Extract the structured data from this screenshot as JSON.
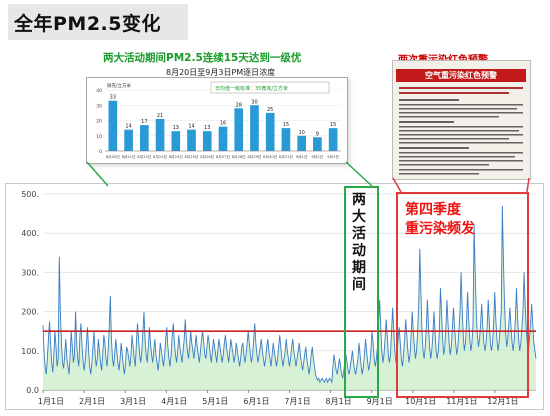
{
  "title": "全年PM2.5变化",
  "inset": {
    "heading": "两大活动期间PM2.5连续15天达到一级优",
    "subtitle": "8月20日至9月3日PM",
    "subtitle_suffix": "逐日浓度",
    "legend": "日均值一级标准：35微克/立方米",
    "unit": "微克/立方米",
    "standard_line": 35
  },
  "notice": {
    "heading": "两次重污染红色预警",
    "banner": "空气重污染红色预警"
  },
  "annotations": {
    "green_label": "两大活动期间",
    "red_label_line1": "第四季度",
    "red_label_line2": "重污染频发"
  },
  "colors": {
    "line": "#3a7cc4",
    "fill": "#cfeecf",
    "threshold": "#c92020",
    "bar": "#2a9ad6",
    "green_box": "#2aa84a",
    "red_box": "#e23a3a"
  },
  "chart_data": [
    {
      "type": "line",
      "title": "",
      "xlabel": "",
      "ylabel": "",
      "x_tick_labels": [
        "1月1日",
        "2月1日",
        "3月1日",
        "4月1日",
        "5月1日",
        "6月1日",
        "7月1日",
        "8月1日",
        "9月1日",
        "10月1日",
        "11月1日",
        "12月1日"
      ],
      "y_tick_labels": [
        "0.0",
        "100.",
        "200.",
        "300.",
        "400.",
        "500."
      ],
      "ylim": [
        0,
        500
      ],
      "threshold": 150,
      "grid": true,
      "series": [
        {
          "values": [
            165,
            95,
            60,
            40,
            80,
            130,
            175,
            120,
            70,
            45,
            90,
            150,
            110,
            60,
            80,
            340,
            200,
            120,
            70,
            55,
            90,
            130,
            80,
            60,
            40,
            90,
            150,
            110,
            70,
            90,
            200,
            120,
            80,
            60,
            140,
            170,
            110,
            70,
            50,
            80,
            120,
            160,
            100,
            60,
            40,
            70,
            110,
            150,
            90,
            60,
            80,
            130,
            100,
            70,
            50,
            90,
            140,
            120,
            80,
            60,
            100,
            160,
            240,
            130,
            80,
            60,
            90,
            130,
            100,
            70,
            50,
            80,
            120,
            90,
            60,
            40,
            70,
            110,
            100,
            80,
            60,
            90,
            140,
            110,
            80,
            60,
            120,
            170,
            130,
            90,
            70,
            100,
            150,
            200,
            130,
            90,
            70,
            110,
            160,
            120,
            90,
            70,
            100,
            130,
            90,
            70,
            50,
            80,
            120,
            100,
            80,
            60,
            90,
            130,
            160,
            110,
            80,
            60,
            90,
            140,
            170,
            120,
            90,
            70,
            100,
            140,
            110,
            90,
            70,
            100,
            130,
            180,
            130,
            100,
            80,
            110,
            150,
            120,
            100,
            80,
            110,
            140,
            110,
            90,
            70,
            100,
            130,
            150,
            120,
            90,
            80,
            110,
            140,
            120,
            90,
            70,
            100,
            130,
            110,
            90,
            70,
            100,
            130,
            110,
            90,
            70,
            90,
            120,
            140,
            110,
            90,
            70,
            100,
            130,
            110,
            90,
            70,
            90,
            120,
            100,
            80,
            60,
            80,
            110,
            120,
            90,
            70,
            90,
            120,
            150,
            120,
            90,
            70,
            90,
            130,
            170,
            120,
            90,
            70,
            90,
            110,
            130,
            100,
            80,
            60,
            80,
            110,
            130,
            100,
            80,
            60,
            90,
            120,
            100,
            80,
            60,
            80,
            110,
            140,
            110,
            80,
            60,
            80,
            100,
            130,
            100,
            80,
            60,
            80,
            110,
            130,
            100,
            80,
            60,
            80,
            100,
            120,
            90,
            70,
            50,
            70,
            90,
            110,
            80,
            60,
            40,
            60,
            90,
            110,
            80,
            60,
            40,
            30,
            25,
            30,
            20,
            25,
            30,
            25,
            20,
            25,
            30,
            20,
            25,
            30,
            25,
            20,
            60,
            90,
            70,
            50,
            40,
            60,
            80,
            60,
            40,
            30,
            50,
            70,
            90,
            70,
            50,
            40,
            60,
            80,
            100,
            70,
            50,
            40,
            60,
            80,
            120,
            90,
            60,
            40,
            60,
            90,
            130,
            100,
            70,
            50,
            70,
            100,
            150,
            120,
            80,
            60,
            80,
            110,
            170,
            230,
            160,
            100,
            70,
            90,
            130,
            180,
            140,
            90,
            70,
            90,
            150,
            210,
            150,
            100,
            70,
            90,
            130,
            160,
            120,
            80,
            60,
            90,
            130,
            180,
            140,
            100,
            70,
            90,
            140,
            200,
            150,
            110,
            80,
            100,
            150,
            220,
            360,
            250,
            150,
            100,
            80,
            110,
            160,
            230,
            160,
            110,
            80,
            100,
            140,
            200,
            150,
            100,
            80,
            100,
            150,
            260,
            200,
            130,
            90,
            110,
            160,
            230,
            170,
            120,
            90,
            110,
            160,
            210,
            160,
            120,
            90,
            110,
            150,
            200,
            300,
            210,
            140,
            100,
            120,
            170,
            250,
            180,
            130,
            100,
            120,
            170,
            420,
            300,
            200,
            140,
            110,
            130,
            170,
            220,
            160,
            120,
            100,
            120,
            160,
            230,
            170,
            120,
            100,
            120,
            170,
            250,
            180,
            130,
            100,
            120,
            160,
            200,
            470,
            330,
            220,
            150,
            110,
            130,
            170,
            210,
            160,
            120,
            100,
            130,
            180,
            260,
            190,
            130,
            100,
            120,
            160,
            200,
            300,
            220,
            160,
            120,
            100,
            130,
            170,
            220,
            170,
            120,
            100,
            80
          ]
        }
      ]
    },
    {
      "type": "bar",
      "title": "两大活动期间PM2.5连续15天达到一级优",
      "ylabel": "微克/立方米",
      "ylim": [
        0,
        40
      ],
      "y_tick_labels": [
        "0",
        "10",
        "20",
        "30",
        "40"
      ],
      "categories": [
        "8月20日",
        "8月21日",
        "8月22日",
        "8月23日",
        "8月24日",
        "8月25日",
        "8月26日",
        "8月27日",
        "8月28日",
        "8月29日",
        "8月30日",
        "8月31日",
        "9月1日",
        "9月2日",
        "9月3日"
      ],
      "values": [
        33,
        14,
        17,
        21,
        13,
        14,
        13,
        16,
        28,
        30,
        25,
        15,
        10,
        9,
        15
      ],
      "standard": 35
    }
  ]
}
